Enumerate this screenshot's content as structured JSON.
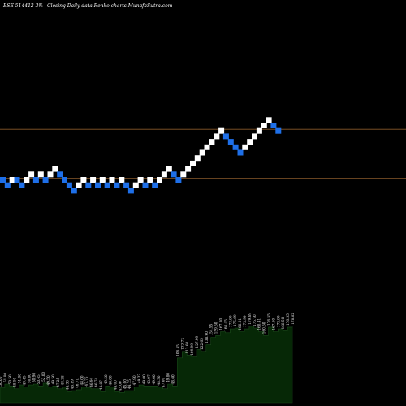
{
  "header": {
    "left": "BSE 514412  3%",
    "right": "Closing Daily data  Renko  charts MunafaSutra.com"
  },
  "colors": {
    "background": "#000000",
    "up_brick": "#ffffff",
    "down_brick": "#1e6fe8",
    "reference_line": "#8a5a2b",
    "volume_fill": "#062806",
    "volume_stroke": "#1a4a1a"
  },
  "chart_data": {
    "type": "renko",
    "title": "BSE 514412  3%",
    "xlabel": "",
    "ylabel": "",
    "bricks": [
      {
        "dir": "down",
        "level": 0
      },
      {
        "dir": "down",
        "level": -1
      },
      {
        "dir": "up",
        "level": 0
      },
      {
        "dir": "down",
        "level": 0
      },
      {
        "dir": "down",
        "level": -1
      },
      {
        "dir": "up",
        "level": 0
      },
      {
        "dir": "up",
        "level": 1
      },
      {
        "dir": "down",
        "level": 0
      },
      {
        "dir": "up",
        "level": 1
      },
      {
        "dir": "down",
        "level": 0
      },
      {
        "dir": "up",
        "level": 1
      },
      {
        "dir": "up",
        "level": 2
      },
      {
        "dir": "down",
        "level": 1
      },
      {
        "dir": "down",
        "level": 0
      },
      {
        "dir": "down",
        "level": -1
      },
      {
        "dir": "down",
        "level": -2
      },
      {
        "dir": "up",
        "level": -1
      },
      {
        "dir": "up",
        "level": 0
      },
      {
        "dir": "down",
        "level": -1
      },
      {
        "dir": "up",
        "level": 0
      },
      {
        "dir": "down",
        "level": -1
      },
      {
        "dir": "up",
        "level": 0
      },
      {
        "dir": "down",
        "level": -1
      },
      {
        "dir": "up",
        "level": 0
      },
      {
        "dir": "down",
        "level": -1
      },
      {
        "dir": "up",
        "level": 0
      },
      {
        "dir": "down",
        "level": -1
      },
      {
        "dir": "down",
        "level": -2
      },
      {
        "dir": "up",
        "level": -1
      },
      {
        "dir": "up",
        "level": 0
      },
      {
        "dir": "down",
        "level": -1
      },
      {
        "dir": "up",
        "level": 0
      },
      {
        "dir": "down",
        "level": -1
      },
      {
        "dir": "up",
        "level": 0
      },
      {
        "dir": "up",
        "level": 1
      },
      {
        "dir": "up",
        "level": 2
      },
      {
        "dir": "down",
        "level": 1
      },
      {
        "dir": "down",
        "level": 0
      },
      {
        "dir": "up",
        "level": 1
      },
      {
        "dir": "up",
        "level": 2
      },
      {
        "dir": "up",
        "level": 3
      },
      {
        "dir": "up",
        "level": 4
      },
      {
        "dir": "up",
        "level": 5
      },
      {
        "dir": "up",
        "level": 6
      },
      {
        "dir": "up",
        "level": 7
      },
      {
        "dir": "up",
        "level": 8
      },
      {
        "dir": "up",
        "level": 9
      },
      {
        "dir": "down",
        "level": 8
      },
      {
        "dir": "down",
        "level": 7
      },
      {
        "dir": "down",
        "level": 6
      },
      {
        "dir": "down",
        "level": 5
      },
      {
        "dir": "up",
        "level": 6
      },
      {
        "dir": "up",
        "level": 7
      },
      {
        "dir": "up",
        "level": 8
      },
      {
        "dir": "up",
        "level": 9
      },
      {
        "dir": "up",
        "level": 10
      },
      {
        "dir": "up",
        "level": 11
      },
      {
        "dir": "down",
        "level": 10
      },
      {
        "dir": "down",
        "level": 9
      }
    ],
    "reference_lines": [
      9,
      0
    ],
    "volume_labels": [
      "50.00",
      "51.80",
      "50.50",
      "48.50",
      "51.80",
      "49.45",
      "50.80",
      "50.90",
      "50.45",
      "52.00",
      "49.50",
      "49.50",
      "47.25",
      "48.38",
      "44.38",
      "45.89",
      "46.71",
      "48.00",
      "47.75",
      "46.94",
      "46.74",
      "44.87",
      "49.50",
      "48.00",
      "44.00",
      "43.00",
      "45.00",
      "44.75",
      "47.90",
      "49.37",
      "49.00",
      "48.97",
      "49.00",
      "48.30",
      "47.00",
      "49.80",
      "48.60",
      "106.55",
      "122.73",
      "113.60",
      "109.99",
      "127.99",
      "122.65",
      "138.90",
      "154.55",
      "159.50",
      "167.50",
      "166.45",
      "173.99",
      "175.69",
      "168.81",
      "173.99",
      "179.69",
      "175.70",
      "168.41",
      "160.50",
      "176.55",
      "167.50",
      "172.99",
      "168.50",
      "176.55",
      "178.62"
    ],
    "volume_heights": [
      0.16,
      0.2,
      0.18,
      0.15,
      0.19,
      0.17,
      0.19,
      0.2,
      0.18,
      0.21,
      0.17,
      0.18,
      0.15,
      0.17,
      0.12,
      0.13,
      0.14,
      0.17,
      0.16,
      0.15,
      0.15,
      0.12,
      0.18,
      0.17,
      0.12,
      0.11,
      0.13,
      0.13,
      0.17,
      0.19,
      0.18,
      0.18,
      0.18,
      0.17,
      0.15,
      0.2,
      0.18,
      0.48,
      0.55,
      0.51,
      0.49,
      0.57,
      0.55,
      0.62,
      0.7,
      0.72,
      0.76,
      0.75,
      0.79,
      0.8,
      0.76,
      0.79,
      0.82,
      0.8,
      0.76,
      0.72,
      0.81,
      0.76,
      0.79,
      0.77,
      0.81,
      0.82
    ]
  }
}
